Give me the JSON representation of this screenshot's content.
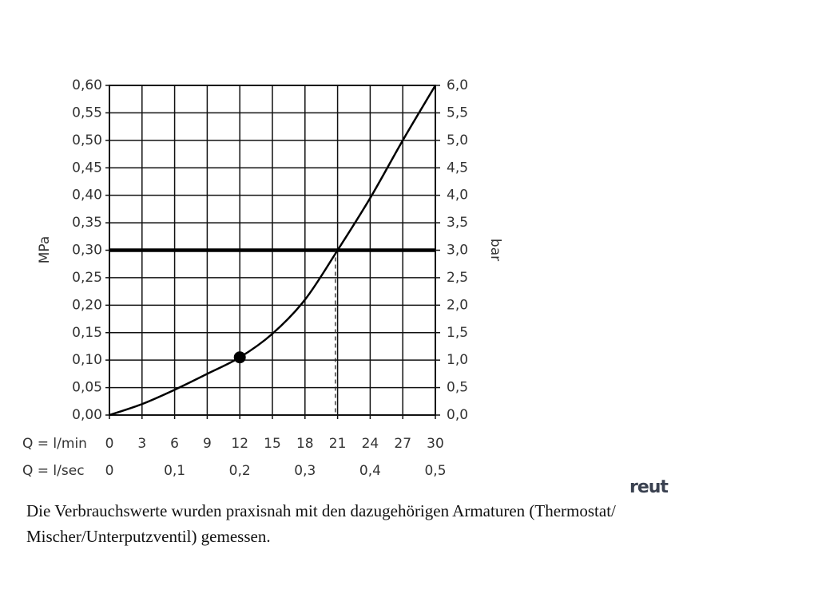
{
  "chart_data": {
    "type": "line",
    "x": [
      0,
      3,
      6,
      9,
      12,
      15,
      18,
      21,
      24,
      27,
      30
    ],
    "series": [
      {
        "color": "#000000",
        "values": [
          0,
          0.02,
          0.046,
          0.075,
          0.105,
          0.148,
          0.21,
          0.3,
          0.395,
          0.5,
          0.6
        ]
      }
    ],
    "xlim": [
      0,
      30
    ],
    "xticks": [
      0,
      3,
      6,
      9,
      12,
      15,
      18,
      21,
      24,
      27,
      30
    ],
    "x_label": "Q = l/min",
    "x2lim": [
      0,
      0.5
    ],
    "x2ticks": [
      {
        "value": 0,
        "label": "0"
      },
      {
        "value": 0.1,
        "label": "0,1"
      },
      {
        "value": 0.2,
        "label": "0,2"
      },
      {
        "value": 0.3,
        "label": "0,3"
      },
      {
        "value": 0.4,
        "label": "0,4"
      },
      {
        "value": 0.5,
        "label": "0,5"
      }
    ],
    "x2_label": "Q = l/sec",
    "ylim": [
      0,
      0.6
    ],
    "yticks": [
      {
        "value": 0,
        "label": "0,00"
      },
      {
        "value": 0.05,
        "label": "0,05"
      },
      {
        "value": 0.1,
        "label": "0,10"
      },
      {
        "value": 0.15,
        "label": "0,15"
      },
      {
        "value": 0.2,
        "label": "0,20"
      },
      {
        "value": 0.25,
        "label": "0,25"
      },
      {
        "value": 0.3,
        "label": "0,30"
      },
      {
        "value": 0.35,
        "label": "0,35"
      },
      {
        "value": 0.4,
        "label": "0,40"
      },
      {
        "value": 0.45,
        "label": "0,45"
      },
      {
        "value": 0.5,
        "label": "0,50"
      },
      {
        "value": 0.55,
        "label": "0,55"
      },
      {
        "value": 0.6,
        "label": "0,60"
      }
    ],
    "y_label": "MPa",
    "y2lim": [
      0,
      6
    ],
    "y2ticks": [
      {
        "value": 0,
        "label": "0,0"
      },
      {
        "value": 0.5,
        "label": "0,5"
      },
      {
        "value": 1,
        "label": "1,0"
      },
      {
        "value": 1.5,
        "label": "1,5"
      },
      {
        "value": 2,
        "label": "2,0"
      },
      {
        "value": 2.5,
        "label": "2,5"
      },
      {
        "value": 3,
        "label": "3,0"
      },
      {
        "value": 3.5,
        "label": "3,5"
      },
      {
        "value": 4,
        "label": "4,0"
      },
      {
        "value": 4.5,
        "label": "4,5"
      },
      {
        "value": 5,
        "label": "5,0"
      },
      {
        "value": 5.5,
        "label": "5,5"
      },
      {
        "value": 6,
        "label": "6,0"
      }
    ],
    "y2_label": "bar",
    "marker": {
      "x": 12,
      "y": 0.105
    },
    "hline": 0.3,
    "vline": 20.8,
    "grid": true
  },
  "logo": "reut",
  "caption": "Die Verbrauchswerte wurden praxisnah mit den dazugehörigen Armaturen (Thermostat/ Mischer/Unterputzventil) gemessen."
}
